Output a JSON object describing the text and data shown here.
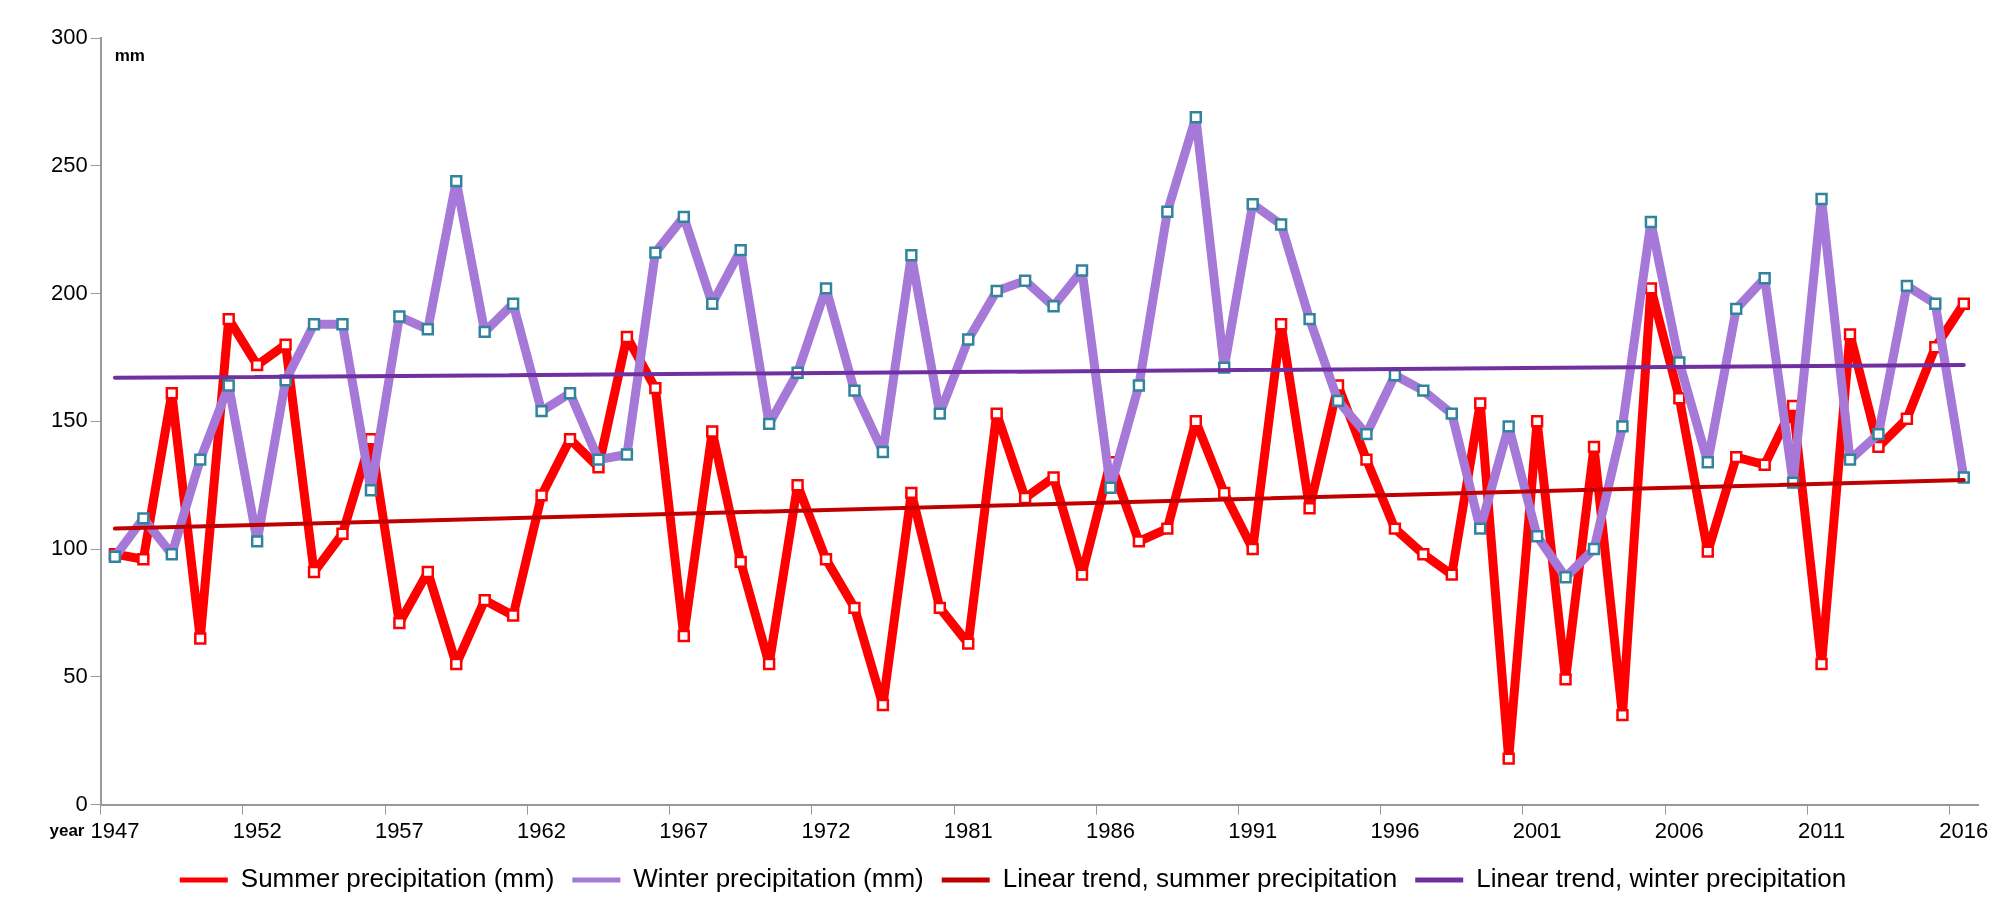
{
  "chart_data": {
    "type": "line",
    "ylabel": "mm",
    "xlabel": "year",
    "categories": [
      "1947",
      null,
      null,
      null,
      null,
      "1952",
      null,
      null,
      null,
      null,
      "1957",
      null,
      null,
      null,
      null,
      "1962",
      null,
      null,
      null,
      null,
      "1967",
      null,
      null,
      null,
      null,
      "1972",
      null,
      null,
      null,
      null,
      "1981",
      null,
      null,
      null,
      null,
      "1986",
      null,
      null,
      null,
      null,
      "1991",
      null,
      null,
      null,
      null,
      "1996",
      null,
      null,
      null,
      null,
      "2001",
      null,
      null,
      null,
      null,
      "2006",
      null,
      null,
      null,
      null,
      "2011",
      null,
      null,
      null,
      null,
      "2016"
    ],
    "ylim": [
      0,
      300
    ],
    "yticks": [
      0,
      50,
      100,
      150,
      200,
      250,
      300
    ],
    "grid": false,
    "legend": "bottom",
    "marker": "square",
    "line_style": "solid",
    "series": [
      {
        "name": "Summer precipitation (mm)",
        "color": "#ff0000",
        "values": [
          98,
          96,
          161,
          65,
          190,
          172,
          180,
          91,
          106,
          143,
          71,
          91,
          55,
          80,
          74,
          121,
          143,
          132,
          183,
          163,
          66,
          146,
          95,
          55,
          125,
          96,
          77,
          39,
          122,
          77,
          63,
          153,
          120,
          128,
          90,
          134,
          103,
          108,
          150,
          122,
          100,
          188,
          116,
          164,
          135,
          108,
          98,
          90,
          157,
          18,
          150,
          49,
          140,
          35,
          202,
          159,
          99,
          136,
          133,
          156,
          55,
          184,
          140,
          151,
          179,
          196
        ]
      },
      {
        "name": "Winter precipitation (mm)",
        "color": "#a678d8",
        "values": [
          97,
          112,
          98,
          135,
          164,
          103,
          166,
          188,
          188,
          123,
          191,
          186,
          244,
          185,
          196,
          154,
          161,
          135,
          137,
          216,
          230,
          196,
          217,
          149,
          169,
          202,
          162,
          138,
          215,
          153,
          182,
          201,
          205,
          195,
          209,
          124,
          164,
          232,
          269,
          171,
          235,
          227,
          190,
          158,
          145,
          168,
          162,
          153,
          108,
          148,
          105,
          89,
          100,
          148,
          228,
          173,
          134,
          194,
          206,
          126,
          237,
          135,
          145,
          203,
          196,
          128
        ]
      },
      {
        "name": "Linear trend, summer precipitation",
        "color": "#c00000",
        "marker": "none",
        "values": [
          108,
          null,
          null,
          null,
          null,
          null,
          null,
          null,
          null,
          null,
          null,
          null,
          null,
          null,
          null,
          null,
          null,
          null,
          null,
          null,
          null,
          null,
          null,
          null,
          null,
          null,
          null,
          null,
          null,
          null,
          null,
          null,
          null,
          null,
          null,
          null,
          null,
          null,
          null,
          null,
          null,
          null,
          null,
          null,
          null,
          null,
          null,
          null,
          null,
          null,
          null,
          null,
          null,
          null,
          null,
          null,
          null,
          null,
          null,
          null,
          null,
          null,
          null,
          null,
          null,
          127
        ]
      },
      {
        "name": "Linear trend, winter precipitation",
        "color": "#7030a0",
        "marker": "none",
        "values": [
          167,
          null,
          null,
          null,
          null,
          null,
          null,
          null,
          null,
          null,
          null,
          null,
          null,
          null,
          null,
          null,
          null,
          null,
          null,
          null,
          null,
          null,
          null,
          null,
          null,
          null,
          null,
          null,
          null,
          null,
          null,
          null,
          null,
          null,
          null,
          null,
          null,
          null,
          null,
          null,
          null,
          null,
          null,
          null,
          null,
          null,
          null,
          null,
          null,
          null,
          null,
          null,
          null,
          null,
          null,
          null,
          null,
          null,
          null,
          null,
          null,
          null,
          null,
          null,
          null,
          172
        ]
      }
    ]
  }
}
